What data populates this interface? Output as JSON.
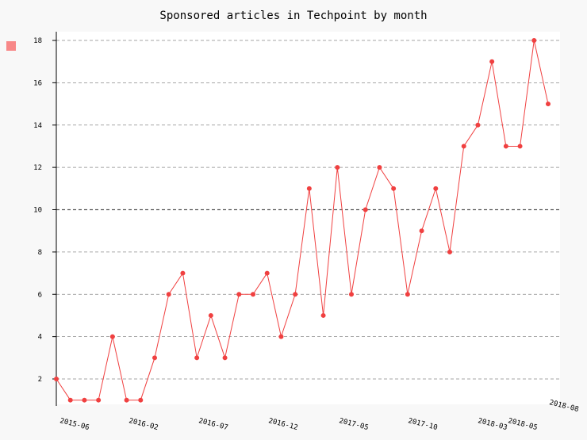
{
  "chart_data": {
    "type": "line",
    "title": "Sponsored articles in Techpoint by month",
    "xlabel": "",
    "ylabel": "",
    "ylim": [
      0.7,
      18.6
    ],
    "yticks": [
      2,
      4,
      6,
      8,
      10,
      12,
      14,
      16,
      18
    ],
    "grid": true,
    "legend": "top-left",
    "x_tick_labels": [
      "2015-06",
      "2016-02",
      "2016-07",
      "2016-12",
      "2017-05",
      "2017-10",
      "2018-03",
      "2018-05",
      "2018-08"
    ],
    "series": [
      {
        "color": "#f04040",
        "values": [
          2,
          1,
          1,
          1,
          4,
          1,
          1,
          3,
          6,
          7,
          3,
          5,
          3,
          6,
          6,
          7,
          4,
          6,
          11,
          5,
          12,
          6,
          10,
          12,
          11,
          6,
          9,
          11,
          8,
          13,
          14,
          17,
          13,
          13,
          18,
          15
        ]
      }
    ]
  }
}
